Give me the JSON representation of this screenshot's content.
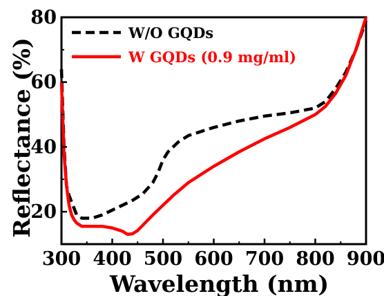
{
  "chart_data": {
    "type": "line",
    "xlabel": "Wavelength (nm)",
    "ylabel": "Reflectance (%)",
    "xlim": [
      300,
      900
    ],
    "ylim": [
      10,
      80
    ],
    "xticks": [
      300,
      400,
      500,
      600,
      700,
      800,
      900
    ],
    "xtick_labels": [
      "300",
      "400",
      "500",
      "600",
      "700",
      "800",
      "900"
    ],
    "yticks": [
      20,
      40,
      60,
      80
    ],
    "ytick_labels": [
      "20",
      "40",
      "60",
      "80"
    ],
    "grid": false,
    "legend_position": "top-left",
    "series": [
      {
        "name": "W/O GQDs",
        "color": "#000000",
        "style": "dashed",
        "x": [
          300,
          305,
          310,
          315,
          320,
          325,
          330,
          340,
          350,
          360,
          380,
          400,
          420,
          440,
          460,
          480,
          490,
          500,
          510,
          530,
          550,
          570,
          600,
          650,
          700,
          750,
          800,
          820,
          840,
          860,
          880,
          900
        ],
        "y": [
          64,
          40,
          28,
          25,
          23,
          21,
          19,
          18,
          18,
          18,
          19,
          20.5,
          22,
          23.5,
          25.5,
          29,
          32,
          36,
          38.5,
          41.5,
          43.5,
          44.5,
          46,
          48,
          49.5,
          50.5,
          52,
          54,
          58,
          63,
          70,
          79
        ]
      },
      {
        "name": "W GQDs (0.9 mg/ml)",
        "color": "#ff0000",
        "style": "solid",
        "x": [
          300,
          305,
          310,
          315,
          320,
          325,
          330,
          340,
          350,
          360,
          380,
          400,
          420,
          430,
          440,
          450,
          460,
          480,
          500,
          520,
          550,
          580,
          600,
          650,
          700,
          750,
          800,
          820,
          840,
          860,
          880,
          900
        ],
        "y": [
          60,
          38,
          28,
          22,
          19,
          17.5,
          16.5,
          15.5,
          15.5,
          15.5,
          15.5,
          15,
          14,
          13,
          13.2,
          14.2,
          15.8,
          19,
          22,
          25,
          29,
          32,
          34,
          38.5,
          42.5,
          46,
          50,
          52.5,
          56.5,
          62,
          70,
          80
        ]
      }
    ]
  }
}
